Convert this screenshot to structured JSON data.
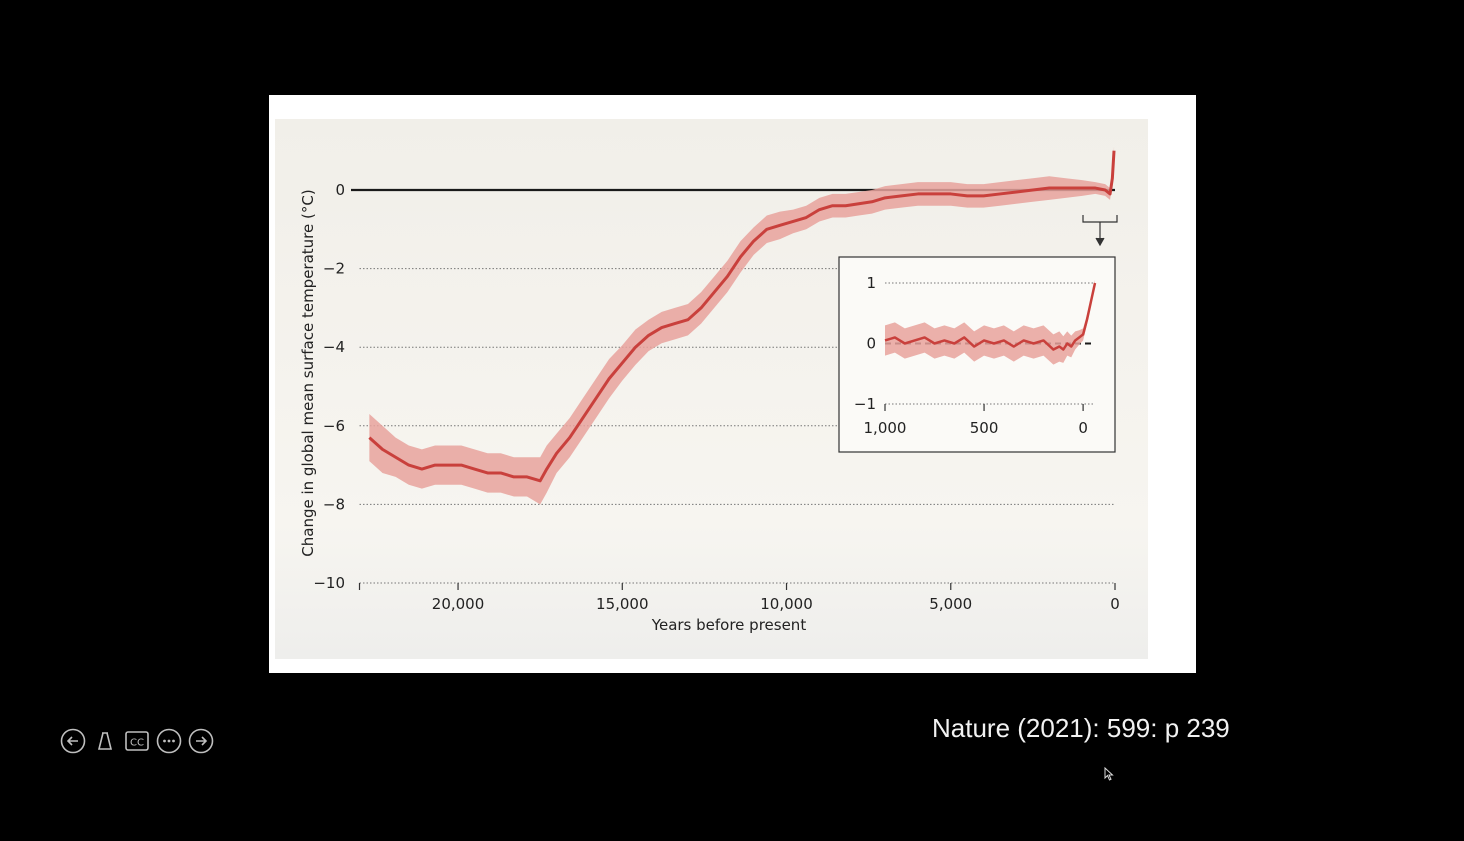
{
  "citation": "Nature (2021): 599: p 239",
  "controls": {
    "items": [
      {
        "name": "previous-slide-button",
        "icon": "arrow-left-circle-icon"
      },
      {
        "name": "pen-tool-button",
        "icon": "pen-icon"
      },
      {
        "name": "captions-button",
        "icon": "cc-icon",
        "label": "CC"
      },
      {
        "name": "more-options-button",
        "icon": "ellipsis-circle-icon"
      },
      {
        "name": "next-slide-button",
        "icon": "arrow-right-circle-icon"
      }
    ],
    "color": "#bfbfbf"
  },
  "chart_data": {
    "type": "line",
    "title": "",
    "xlabel": "Years before present",
    "ylabel": "Change in global mean surface temperature (°C)",
    "x_reversed": true,
    "xlim": [
      23000,
      0
    ],
    "ylim": [
      -10,
      0
    ],
    "x_ticks": [
      20000,
      15000,
      10000,
      5000,
      0
    ],
    "x_tick_labels": [
      "20,000",
      "15,000",
      "10,000",
      "5,000",
      "0"
    ],
    "y_ticks": [
      0,
      -2,
      -4,
      -6,
      -8,
      -10
    ],
    "y_tick_labels": [
      "0",
      "−2",
      "−4",
      "−6",
      "−8",
      "−10"
    ],
    "grid": "dotted horizontal",
    "line_color": "#c9403c",
    "band_color": "#e8a29c",
    "series": [
      {
        "x": [
          22700,
          22300,
          21900,
          21500,
          21100,
          20700,
          20300,
          19900,
          19500,
          19100,
          18700,
          18300,
          17900,
          17500,
          17300,
          17000,
          16600,
          16200,
          15800,
          15400,
          15000,
          14600,
          14200,
          13800,
          13400,
          13000,
          12600,
          12200,
          11800,
          11400,
          11000,
          10600,
          10200,
          9800,
          9400,
          9000,
          8600,
          8200,
          7800,
          7400,
          7000,
          6500,
          6000,
          5500,
          5000,
          4500,
          4000,
          3500,
          3000,
          2500,
          2000,
          1500,
          1000,
          600,
          300,
          150,
          80,
          30
        ],
        "y": [
          -6.3,
          -6.6,
          -6.8,
          -7.0,
          -7.1,
          -7.0,
          -7.0,
          -7.0,
          -7.1,
          -7.2,
          -7.2,
          -7.3,
          -7.3,
          -7.4,
          -7.1,
          -6.7,
          -6.3,
          -5.8,
          -5.3,
          -4.8,
          -4.4,
          -4.0,
          -3.7,
          -3.5,
          -3.4,
          -3.3,
          -3.0,
          -2.6,
          -2.2,
          -1.7,
          -1.3,
          -1.0,
          -0.9,
          -0.8,
          -0.7,
          -0.5,
          -0.4,
          -0.4,
          -0.35,
          -0.3,
          -0.2,
          -0.15,
          -0.1,
          -0.1,
          -0.1,
          -0.15,
          -0.15,
          -0.1,
          -0.05,
          0.0,
          0.05,
          0.05,
          0.05,
          0.05,
          0.0,
          -0.1,
          0.3,
          1.0
        ],
        "band_half_width": [
          0.6,
          0.6,
          0.5,
          0.5,
          0.5,
          0.5,
          0.5,
          0.5,
          0.5,
          0.5,
          0.5,
          0.5,
          0.5,
          0.6,
          0.6,
          0.5,
          0.5,
          0.5,
          0.5,
          0.5,
          0.45,
          0.45,
          0.4,
          0.4,
          0.4,
          0.4,
          0.4,
          0.4,
          0.4,
          0.4,
          0.35,
          0.35,
          0.35,
          0.3,
          0.3,
          0.3,
          0.3,
          0.3,
          0.3,
          0.3,
          0.3,
          0.3,
          0.3,
          0.3,
          0.3,
          0.3,
          0.3,
          0.3,
          0.3,
          0.3,
          0.3,
          0.25,
          0.2,
          0.15,
          0.15,
          0.15,
          0.1,
          0.1
        ]
      }
    ],
    "inset": {
      "type": "line",
      "x_reversed": true,
      "xlim": [
        1000,
        -60
      ],
      "ylim": [
        -1,
        1
      ],
      "x_ticks": [
        1000,
        500,
        0
      ],
      "x_tick_labels": [
        "1,000",
        "500",
        "0"
      ],
      "y_ticks": [
        1,
        0,
        -1
      ],
      "y_tick_labels": [
        "1",
        "0",
        "−1"
      ],
      "grid": "dotted horizontal",
      "series": [
        {
          "x": [
            1000,
            950,
            900,
            850,
            800,
            750,
            700,
            650,
            600,
            550,
            500,
            450,
            400,
            350,
            300,
            250,
            200,
            150,
            120,
            100,
            80,
            60,
            40,
            20,
            0,
            -20,
            -40,
            -60
          ],
          "y": [
            0.05,
            0.1,
            0.0,
            0.05,
            0.1,
            0.0,
            0.05,
            0.0,
            0.1,
            -0.05,
            0.05,
            0.0,
            0.05,
            -0.05,
            0.05,
            0.0,
            0.05,
            -0.1,
            -0.05,
            -0.1,
            0.0,
            -0.05,
            0.05,
            0.1,
            0.15,
            0.4,
            0.7,
            1.0
          ],
          "band_half_width": [
            0.25,
            0.25,
            0.25,
            0.25,
            0.25,
            0.25,
            0.25,
            0.25,
            0.25,
            0.25,
            0.25,
            0.25,
            0.25,
            0.25,
            0.25,
            0.25,
            0.25,
            0.25,
            0.25,
            0.22,
            0.2,
            0.18,
            0.15,
            0.12,
            0.1,
            0.08,
            0.06,
            0.05
          ]
        }
      ]
    }
  }
}
